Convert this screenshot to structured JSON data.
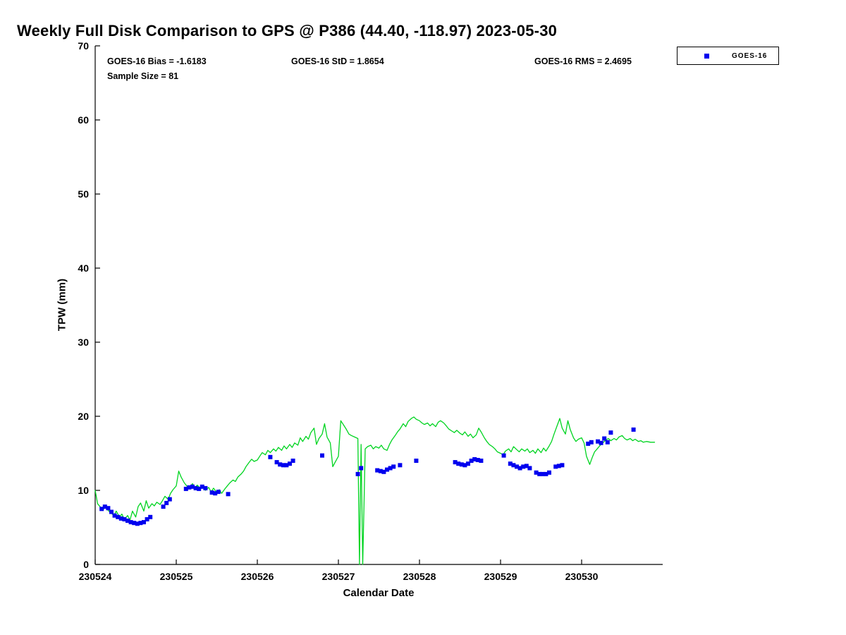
{
  "figure": {
    "title": "Weekly Full Disk Comparison to GPS @ P386 (44.40, -118.97) 2023-05-30",
    "annotations": {
      "bias": "GOES-16 Bias = -1.6183",
      "std": "GOES-16 StD = 1.8654",
      "rms": "GOES-16 RMS = 2.4695",
      "sample_size": "Sample Size = 81"
    },
    "xlabel": "Calendar Date",
    "ylabel": "TPW (mm)",
    "legend": {
      "items": [
        {
          "label": "GOES-16",
          "marker": "square",
          "color": "#0000ee"
        }
      ]
    }
  },
  "chart_data": {
    "type": "line+scatter",
    "title": "Weekly Full Disk Comparison to GPS @ P386 (44.40, -118.97) 2023-05-30",
    "xlabel": "Calendar Date",
    "ylabel": "TPW (mm)",
    "x_unit": "days since 230524",
    "xlim_days": [
      0,
      7
    ],
    "ylim": [
      0,
      70
    ],
    "xticks": {
      "positions": [
        0,
        1,
        2,
        3,
        4,
        5,
        6
      ],
      "labels": [
        "230524",
        "230525",
        "230526",
        "230527",
        "230528",
        "230529",
        "230530"
      ]
    },
    "yticks": [
      0,
      10,
      20,
      30,
      40,
      50,
      60,
      70
    ],
    "grid": false,
    "legend_position": "outside-top-right",
    "stats": {
      "bias": -1.6183,
      "std": 1.8654,
      "rms": 2.4695,
      "sample_size": 81
    },
    "series": [
      {
        "name": "GPS",
        "type": "line",
        "color": "#00d420",
        "points": [
          [
            0.0,
            10.0
          ],
          [
            0.03,
            8.2
          ],
          [
            0.06,
            7.8
          ],
          [
            0.1,
            7.4
          ],
          [
            0.13,
            7.9
          ],
          [
            0.16,
            7.3
          ],
          [
            0.2,
            6.9
          ],
          [
            0.23,
            6.6
          ],
          [
            0.26,
            7.2
          ],
          [
            0.3,
            6.4
          ],
          [
            0.33,
            6.8
          ],
          [
            0.36,
            6.1
          ],
          [
            0.4,
            6.6
          ],
          [
            0.43,
            6.0
          ],
          [
            0.46,
            7.2
          ],
          [
            0.5,
            6.4
          ],
          [
            0.53,
            7.8
          ],
          [
            0.56,
            8.3
          ],
          [
            0.6,
            7.2
          ],
          [
            0.63,
            8.6
          ],
          [
            0.66,
            7.6
          ],
          [
            0.7,
            8.2
          ],
          [
            0.73,
            7.9
          ],
          [
            0.76,
            8.4
          ],
          [
            0.8,
            8.1
          ],
          [
            0.83,
            8.6
          ],
          [
            0.86,
            9.2
          ],
          [
            0.9,
            8.8
          ],
          [
            0.93,
            9.6
          ],
          [
            0.96,
            10.1
          ],
          [
            1.0,
            10.6
          ],
          [
            1.03,
            12.6
          ],
          [
            1.06,
            11.8
          ],
          [
            1.1,
            11.0
          ],
          [
            1.13,
            10.6
          ],
          [
            1.16,
            10.3
          ],
          [
            1.2,
            10.9
          ],
          [
            1.23,
            10.4
          ],
          [
            1.26,
            10.7
          ],
          [
            1.3,
            10.2
          ],
          [
            1.33,
            10.6
          ],
          [
            1.36,
            10.0
          ],
          [
            1.4,
            10.4
          ],
          [
            1.43,
            9.8
          ],
          [
            1.46,
            10.3
          ],
          [
            1.5,
            9.7
          ],
          [
            1.53,
            10.1
          ],
          [
            1.56,
            9.6
          ],
          [
            1.6,
            10.2
          ],
          [
            1.63,
            10.6
          ],
          [
            1.66,
            11.0
          ],
          [
            1.7,
            11.4
          ],
          [
            1.73,
            11.2
          ],
          [
            1.76,
            11.8
          ],
          [
            1.8,
            12.2
          ],
          [
            1.83,
            12.6
          ],
          [
            1.86,
            13.2
          ],
          [
            1.9,
            13.8
          ],
          [
            1.93,
            14.2
          ],
          [
            1.96,
            13.9
          ],
          [
            2.0,
            14.1
          ],
          [
            2.03,
            14.6
          ],
          [
            2.06,
            15.1
          ],
          [
            2.1,
            14.8
          ],
          [
            2.13,
            15.4
          ],
          [
            2.16,
            15.1
          ],
          [
            2.2,
            15.6
          ],
          [
            2.23,
            15.3
          ],
          [
            2.26,
            15.8
          ],
          [
            2.3,
            15.4
          ],
          [
            2.33,
            16.0
          ],
          [
            2.36,
            15.6
          ],
          [
            2.4,
            16.2
          ],
          [
            2.43,
            15.8
          ],
          [
            2.46,
            16.4
          ],
          [
            2.5,
            16.1
          ],
          [
            2.53,
            17.1
          ],
          [
            2.56,
            16.6
          ],
          [
            2.6,
            17.3
          ],
          [
            2.63,
            16.9
          ],
          [
            2.66,
            17.8
          ],
          [
            2.7,
            18.4
          ],
          [
            2.73,
            16.2
          ],
          [
            2.76,
            17.0
          ],
          [
            2.8,
            17.6
          ],
          [
            2.83,
            19.0
          ],
          [
            2.86,
            17.2
          ],
          [
            2.9,
            16.4
          ],
          [
            2.93,
            13.2
          ],
          [
            2.96,
            13.8
          ],
          [
            3.0,
            14.6
          ],
          [
            3.03,
            19.4
          ],
          [
            3.06,
            18.9
          ],
          [
            3.1,
            18.2
          ],
          [
            3.13,
            17.6
          ],
          [
            3.16,
            17.4
          ],
          [
            3.2,
            17.2
          ],
          [
            3.24,
            17.0
          ],
          [
            3.26,
            0.0
          ],
          [
            3.28,
            16.2
          ],
          [
            3.3,
            0.0
          ],
          [
            3.33,
            15.6
          ],
          [
            3.36,
            15.9
          ],
          [
            3.4,
            16.1
          ],
          [
            3.43,
            15.6
          ],
          [
            3.46,
            15.9
          ],
          [
            3.5,
            15.7
          ],
          [
            3.53,
            16.1
          ],
          [
            3.56,
            15.6
          ],
          [
            3.6,
            15.4
          ],
          [
            3.63,
            16.2
          ],
          [
            3.66,
            16.8
          ],
          [
            3.7,
            17.4
          ],
          [
            3.73,
            17.9
          ],
          [
            3.76,
            18.3
          ],
          [
            3.8,
            19.0
          ],
          [
            3.83,
            18.6
          ],
          [
            3.86,
            19.3
          ],
          [
            3.9,
            19.7
          ],
          [
            3.93,
            19.9
          ],
          [
            3.96,
            19.6
          ],
          [
            4.0,
            19.4
          ],
          [
            4.03,
            19.1
          ],
          [
            4.06,
            18.9
          ],
          [
            4.1,
            19.1
          ],
          [
            4.13,
            18.7
          ],
          [
            4.16,
            19.0
          ],
          [
            4.2,
            18.6
          ],
          [
            4.23,
            19.2
          ],
          [
            4.26,
            19.4
          ],
          [
            4.3,
            19.1
          ],
          [
            4.33,
            18.7
          ],
          [
            4.36,
            18.3
          ],
          [
            4.4,
            18.0
          ],
          [
            4.43,
            17.8
          ],
          [
            4.46,
            18.1
          ],
          [
            4.5,
            17.7
          ],
          [
            4.53,
            17.5
          ],
          [
            4.56,
            17.9
          ],
          [
            4.6,
            17.3
          ],
          [
            4.63,
            17.6
          ],
          [
            4.66,
            17.1
          ],
          [
            4.7,
            17.5
          ],
          [
            4.73,
            18.4
          ],
          [
            4.76,
            17.9
          ],
          [
            4.8,
            17.1
          ],
          [
            4.83,
            16.6
          ],
          [
            4.86,
            16.2
          ],
          [
            4.9,
            15.9
          ],
          [
            4.93,
            15.6
          ],
          [
            4.96,
            15.2
          ],
          [
            5.0,
            15.0
          ],
          [
            5.03,
            14.8
          ],
          [
            5.06,
            15.3
          ],
          [
            5.1,
            15.6
          ],
          [
            5.13,
            15.2
          ],
          [
            5.16,
            15.9
          ],
          [
            5.2,
            15.5
          ],
          [
            5.23,
            15.2
          ],
          [
            5.26,
            15.6
          ],
          [
            5.3,
            15.3
          ],
          [
            5.33,
            15.6
          ],
          [
            5.36,
            15.1
          ],
          [
            5.4,
            15.4
          ],
          [
            5.43,
            15.0
          ],
          [
            5.46,
            15.6
          ],
          [
            5.5,
            15.1
          ],
          [
            5.53,
            15.7
          ],
          [
            5.56,
            15.3
          ],
          [
            5.6,
            16.0
          ],
          [
            5.63,
            16.6
          ],
          [
            5.66,
            17.6
          ],
          [
            5.7,
            18.8
          ],
          [
            5.73,
            19.7
          ],
          [
            5.76,
            18.4
          ],
          [
            5.8,
            17.6
          ],
          [
            5.83,
            19.4
          ],
          [
            5.86,
            18.2
          ],
          [
            5.9,
            17.1
          ],
          [
            5.93,
            16.6
          ],
          [
            5.96,
            16.9
          ],
          [
            6.0,
            17.1
          ],
          [
            6.03,
            16.4
          ],
          [
            6.06,
            14.6
          ],
          [
            6.1,
            13.5
          ],
          [
            6.13,
            14.4
          ],
          [
            6.16,
            15.2
          ],
          [
            6.2,
            15.7
          ],
          [
            6.23,
            16.1
          ],
          [
            6.26,
            16.4
          ],
          [
            6.3,
            16.8
          ],
          [
            6.33,
            17.0
          ],
          [
            6.36,
            16.7
          ],
          [
            6.4,
            17.0
          ],
          [
            6.43,
            16.8
          ],
          [
            6.46,
            17.2
          ],
          [
            6.5,
            17.4
          ],
          [
            6.53,
            17.0
          ],
          [
            6.56,
            16.8
          ],
          [
            6.6,
            17.0
          ],
          [
            6.63,
            16.7
          ],
          [
            6.66,
            16.9
          ],
          [
            6.7,
            16.6
          ],
          [
            6.73,
            16.7
          ],
          [
            6.76,
            16.5
          ],
          [
            6.8,
            16.6
          ],
          [
            6.85,
            16.5
          ],
          [
            6.9,
            16.5
          ]
        ]
      },
      {
        "name": "GOES-16",
        "type": "scatter",
        "marker": "square",
        "color": "#0000ee",
        "points": [
          [
            0.08,
            7.5
          ],
          [
            0.12,
            7.8
          ],
          [
            0.16,
            7.6
          ],
          [
            0.2,
            7.1
          ],
          [
            0.24,
            6.6
          ],
          [
            0.28,
            6.4
          ],
          [
            0.32,
            6.2
          ],
          [
            0.36,
            6.1
          ],
          [
            0.4,
            5.9
          ],
          [
            0.44,
            5.7
          ],
          [
            0.48,
            5.6
          ],
          [
            0.52,
            5.5
          ],
          [
            0.56,
            5.6
          ],
          [
            0.6,
            5.7
          ],
          [
            0.64,
            6.1
          ],
          [
            0.68,
            6.4
          ],
          [
            0.84,
            7.8
          ],
          [
            0.88,
            8.3
          ],
          [
            0.92,
            8.8
          ],
          [
            1.12,
            10.2
          ],
          [
            1.16,
            10.4
          ],
          [
            1.2,
            10.5
          ],
          [
            1.24,
            10.3
          ],
          [
            1.28,
            10.2
          ],
          [
            1.32,
            10.5
          ],
          [
            1.36,
            10.3
          ],
          [
            1.44,
            9.7
          ],
          [
            1.48,
            9.6
          ],
          [
            1.52,
            9.8
          ],
          [
            1.64,
            9.5
          ],
          [
            2.16,
            14.5
          ],
          [
            2.24,
            13.8
          ],
          [
            2.28,
            13.5
          ],
          [
            2.32,
            13.4
          ],
          [
            2.36,
            13.4
          ],
          [
            2.4,
            13.6
          ],
          [
            2.44,
            14.0
          ],
          [
            2.8,
            14.7
          ],
          [
            3.24,
            12.2
          ],
          [
            3.28,
            13.0
          ],
          [
            3.48,
            12.7
          ],
          [
            3.52,
            12.6
          ],
          [
            3.56,
            12.5
          ],
          [
            3.6,
            12.8
          ],
          [
            3.64,
            13.0
          ],
          [
            3.68,
            13.2
          ],
          [
            3.76,
            13.4
          ],
          [
            3.96,
            14.0
          ],
          [
            4.44,
            13.8
          ],
          [
            4.48,
            13.6
          ],
          [
            4.52,
            13.5
          ],
          [
            4.56,
            13.4
          ],
          [
            4.6,
            13.6
          ],
          [
            4.64,
            14.0
          ],
          [
            4.68,
            14.2
          ],
          [
            4.72,
            14.1
          ],
          [
            4.76,
            14.0
          ],
          [
            5.04,
            14.7
          ],
          [
            5.12,
            13.6
          ],
          [
            5.16,
            13.4
          ],
          [
            5.2,
            13.2
          ],
          [
            5.24,
            13.0
          ],
          [
            5.28,
            13.2
          ],
          [
            5.32,
            13.3
          ],
          [
            5.36,
            13.0
          ],
          [
            5.44,
            12.4
          ],
          [
            5.48,
            12.2
          ],
          [
            5.52,
            12.2
          ],
          [
            5.56,
            12.2
          ],
          [
            5.6,
            12.4
          ],
          [
            5.68,
            13.2
          ],
          [
            5.72,
            13.3
          ],
          [
            5.76,
            13.4
          ],
          [
            6.08,
            16.3
          ],
          [
            6.12,
            16.5
          ],
          [
            6.2,
            16.6
          ],
          [
            6.24,
            16.4
          ],
          [
            6.28,
            17.0
          ],
          [
            6.32,
            16.5
          ],
          [
            6.36,
            17.8
          ],
          [
            6.64,
            18.2
          ]
        ]
      }
    ]
  }
}
